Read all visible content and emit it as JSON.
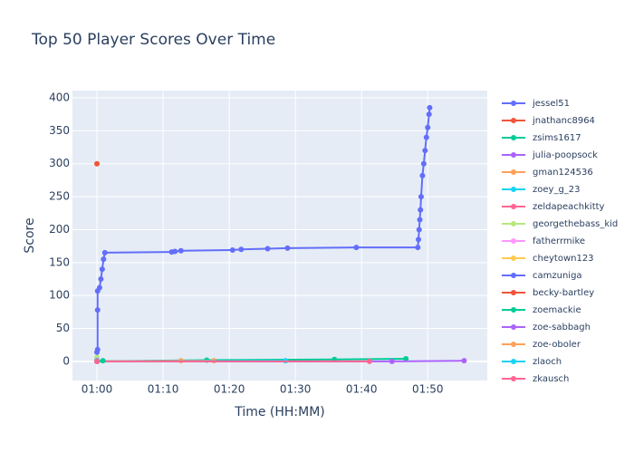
{
  "chart_data": {
    "type": "line",
    "title": "Top 50 Player Scores Over Time",
    "x_label": "Time (HH:MM)",
    "y_label": "Score",
    "xlim": [
      56.3,
      119.0
    ],
    "ylim": [
      -29,
      411
    ],
    "xticks": [
      {
        "value": 60,
        "label": "01:00"
      },
      {
        "value": 70,
        "label": "01:10"
      },
      {
        "value": 80,
        "label": "01:20"
      },
      {
        "value": 90,
        "label": "01:30"
      },
      {
        "value": 100,
        "label": "01:40"
      },
      {
        "value": 110,
        "label": "01:50"
      }
    ],
    "yticks": [
      0,
      50,
      100,
      150,
      200,
      250,
      300,
      350,
      400
    ],
    "grid": true,
    "legend": "right",
    "series": [
      {
        "name": "jessel51",
        "color": "#636efa",
        "x": [
          60.0,
          60.1,
          60.1,
          60.1,
          60.4,
          60.6,
          60.8,
          61.0,
          61.2,
          71.3,
          71.8,
          72.7,
          80.5,
          81.8,
          85.8,
          88.8,
          99.2,
          108.5,
          108.6,
          108.7,
          108.8,
          108.9,
          109.0,
          109.2,
          109.4,
          109.6,
          109.8,
          110.0,
          110.2,
          110.3
        ],
        "values": [
          0,
          18,
          78,
          107,
          112,
          125,
          140,
          155,
          165,
          166,
          167,
          168,
          169,
          170,
          171,
          172,
          173,
          173,
          185,
          200,
          215,
          230,
          250,
          282,
          300,
          320,
          340,
          355,
          375,
          385
        ]
      },
      {
        "name": "jnathanc8964",
        "color": "#EF553B",
        "x": [
          60.0
        ],
        "values": [
          300
        ]
      },
      {
        "name": "zsims1617",
        "color": "#00cc96",
        "x": [
          60.0,
          76.6,
          95.9,
          106.7
        ],
        "values": [
          0,
          2,
          3,
          4
        ]
      },
      {
        "name": "julia-poopsock",
        "color": "#ab63fa",
        "x": [
          60.0,
          104.6,
          115.5
        ],
        "values": [
          0,
          0,
          1
        ]
      },
      {
        "name": "gman124536",
        "color": "#FFA15A",
        "x": [
          60.0,
          72.7,
          77.7
        ],
        "values": [
          0,
          1,
          1
        ]
      },
      {
        "name": "zoey_g_23",
        "color": "#19d3f3",
        "x": [
          60.0,
          88.5
        ],
        "values": [
          0,
          1
        ]
      },
      {
        "name": "zeldapeachkitty",
        "color": "#FF6692",
        "x": [
          60.0,
          101.2
        ],
        "values": [
          0,
          0
        ]
      },
      {
        "name": "georgethebass_kid",
        "color": "#B6E880",
        "x": [
          60.0
        ],
        "values": [
          6
        ]
      },
      {
        "name": "fatherrmike",
        "color": "#FF97FF",
        "x": [
          60.0
        ],
        "values": [
          2
        ]
      },
      {
        "name": "cheytown123",
        "color": "#FECB52",
        "x": [
          60.0
        ],
        "values": [
          1
        ]
      },
      {
        "name": "camzuniga",
        "color": "#636efa",
        "x": [
          60.0
        ],
        "values": [
          14
        ]
      },
      {
        "name": "becky-bartley",
        "color": "#EF553B",
        "x": [
          60.0
        ],
        "values": [
          1
        ]
      },
      {
        "name": "zoemackie",
        "color": "#00cc96",
        "x": [
          60.0,
          60.9
        ],
        "values": [
          0,
          1
        ]
      },
      {
        "name": "zoe-sabbagh",
        "color": "#ab63fa",
        "x": [
          60.0
        ],
        "values": [
          0
        ]
      },
      {
        "name": "zoe-oboler",
        "color": "#FFA15A",
        "x": [
          60.0
        ],
        "values": [
          0
        ]
      },
      {
        "name": "zlaoch",
        "color": "#19d3f3",
        "x": [
          60.0
        ],
        "values": [
          1
        ]
      },
      {
        "name": "zkausch",
        "color": "#FF6692",
        "x": [
          60.0
        ],
        "values": [
          0
        ]
      }
    ]
  }
}
